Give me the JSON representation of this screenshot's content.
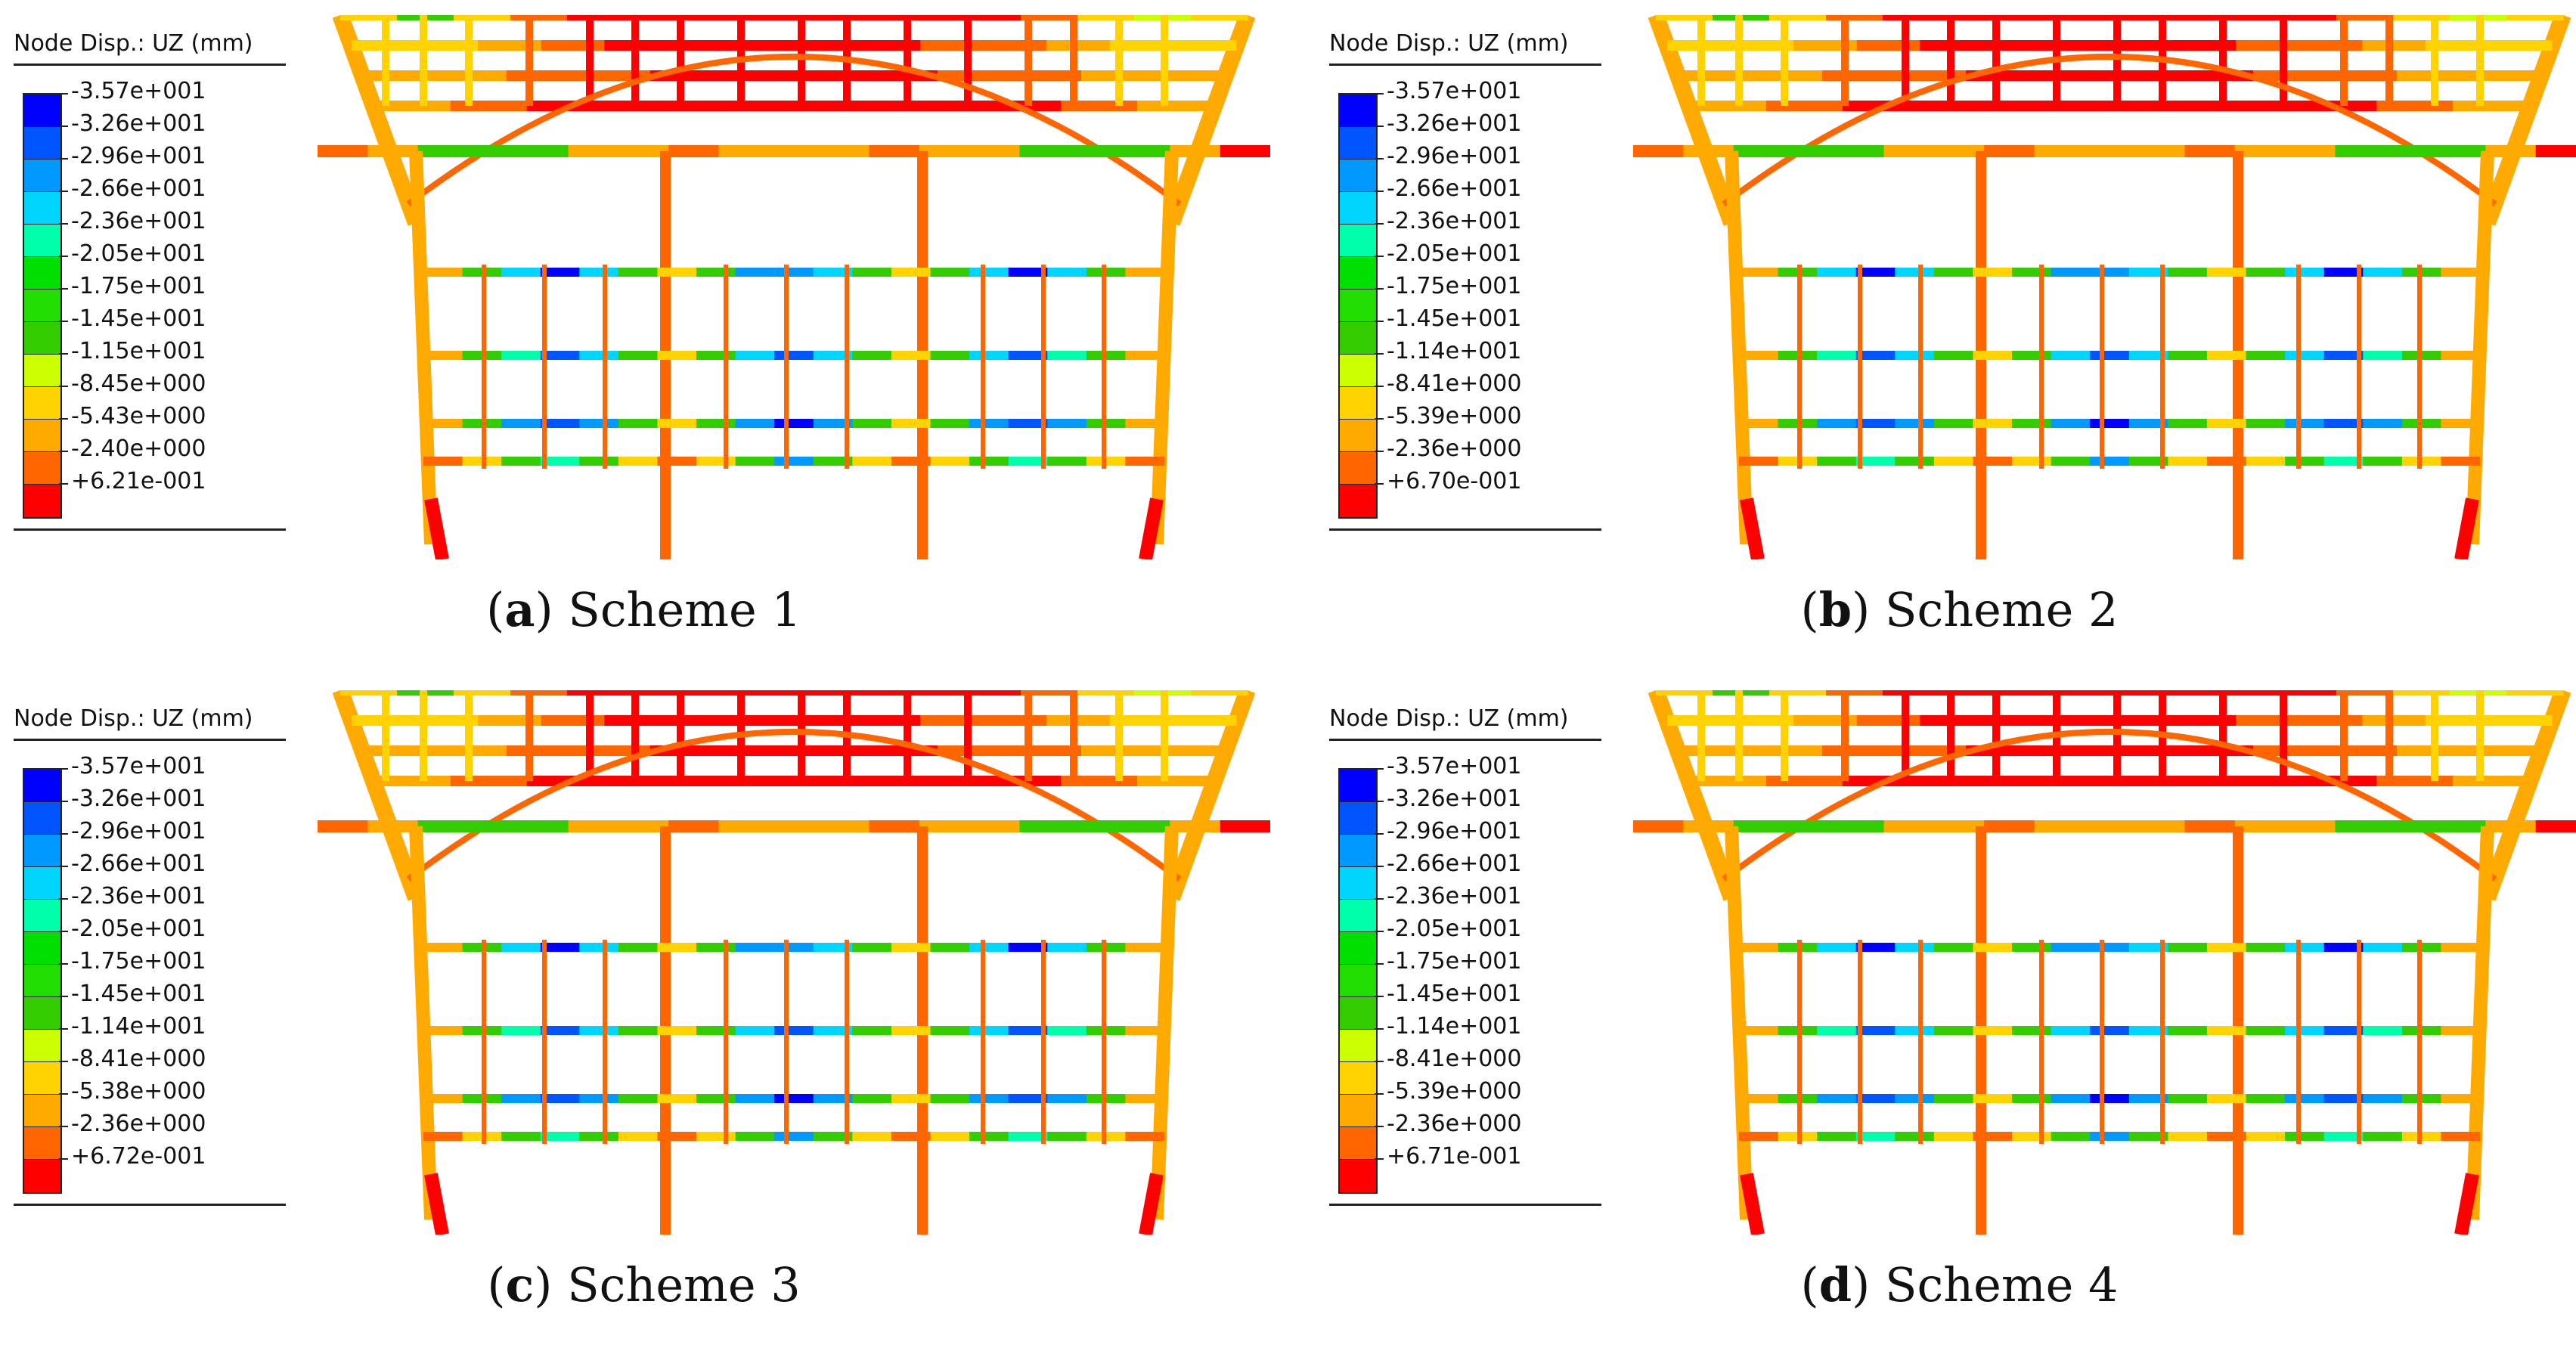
{
  "colors": [
    "#0000ff",
    "#0055ff",
    "#0099ff",
    "#00d5ff",
    "#00ffaa",
    "#00e000",
    "#22dd00",
    "#33cc00",
    "#ccff00",
    "#ffd200",
    "#ffaa00",
    "#ff6600",
    "#ff0000"
  ],
  "panels": [
    {
      "title": "Node Disp.: UZ (mm)",
      "caption_letter": "a",
      "caption_text": "Scheme 1",
      "labels": [
        "-3.57e+001",
        "-3.26e+001",
        "-2.96e+001",
        "-2.66e+001",
        "-2.36e+001",
        "-2.05e+001",
        "-1.75e+001",
        "-1.45e+001",
        "-1.15e+001",
        "-8.45e+000",
        "-5.43e+000",
        "-2.40e+000",
        "+6.21e-001"
      ]
    },
    {
      "title": "Node Disp.: UZ (mm)",
      "caption_letter": "b",
      "caption_text": "Scheme 2",
      "labels": [
        "-3.57e+001",
        "-3.26e+001",
        "-2.96e+001",
        "-2.66e+001",
        "-2.36e+001",
        "-2.05e+001",
        "-1.75e+001",
        "-1.45e+001",
        "-1.14e+001",
        "-8.41e+000",
        "-5.39e+000",
        "-2.36e+000",
        "+6.70e-001"
      ]
    },
    {
      "title": "Node Disp.: UZ (mm)",
      "caption_letter": "c",
      "caption_text": "Scheme 3",
      "labels": [
        "-3.57e+001",
        "-3.26e+001",
        "-2.96e+001",
        "-2.66e+001",
        "-2.36e+001",
        "-2.05e+001",
        "-1.75e+001",
        "-1.45e+001",
        "-1.14e+001",
        "-8.41e+000",
        "-5.38e+000",
        "-2.36e+000",
        "+6.72e-001"
      ]
    },
    {
      "title": "Node Disp.: UZ (mm)",
      "caption_letter": "d",
      "caption_text": "Scheme 4",
      "labels": [
        "-3.57e+001",
        "-3.26e+001",
        "-2.96e+001",
        "-2.66e+001",
        "-2.36e+001",
        "-2.05e+001",
        "-1.75e+001",
        "-1.45e+001",
        "-1.14e+001",
        "-8.41e+000",
        "-5.39e+000",
        "-2.36e+000",
        "+6.71e-001"
      ]
    }
  ]
}
